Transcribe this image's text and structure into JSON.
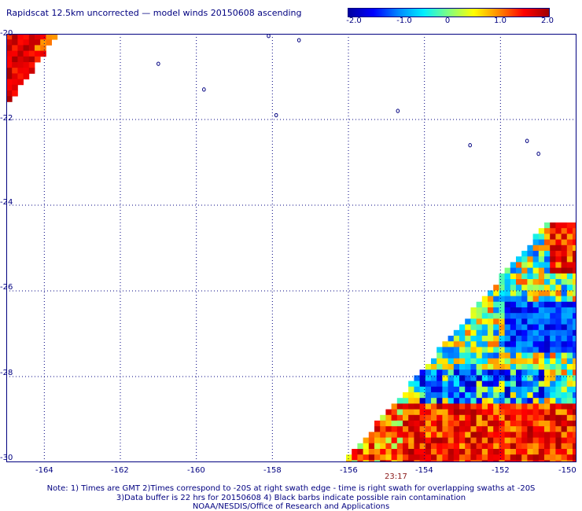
{
  "title": "Rapidscat 12.5km uncorrected — model winds 20150608 ascending",
  "colorbar": {
    "ticks": [
      "-2.0",
      "-1.0",
      "0",
      "1.0",
      "2.0"
    ],
    "colors": [
      "#0000a0",
      "#0000ff",
      "#0088ff",
      "#00eeff",
      "#80ff80",
      "#ffff00",
      "#ff8800",
      "#ff0000",
      "#a00000"
    ]
  },
  "map": {
    "lat_labels": [
      "-20",
      "-22",
      "-24",
      "-26",
      "-28",
      "-30"
    ],
    "lon_labels": [
      "-164",
      "-162",
      "-160",
      "-158",
      "-156",
      "-154",
      "-152",
      "-150"
    ],
    "lat_range": [
      -30,
      -20
    ],
    "lon_range": [
      -165,
      -150
    ],
    "gridlines": true,
    "swath_time": "23:17"
  },
  "notes": {
    "line1": "Note: 1) Times are GMT 2)Times correspond to -20S at right swath edge - time is right swath for overlapping swaths at -20S",
    "line2": "3)Data buffer is 22 hrs for 20150608 4) Black barbs indicate possible rain contamination",
    "line3": "NOAA/NESDIS/Office of Research and Applications"
  }
}
